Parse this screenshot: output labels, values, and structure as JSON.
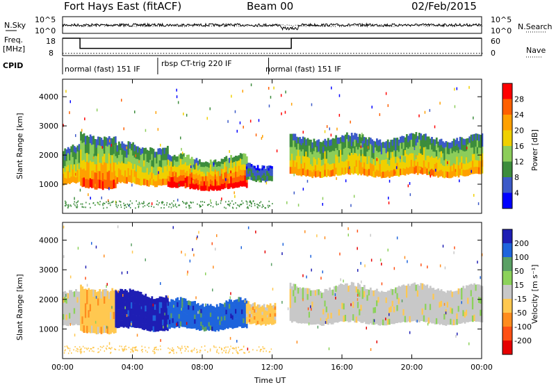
{
  "header": {
    "station": "Fort Hays East (fitACF)",
    "beam": "Beam 00",
    "date": "02/Feb/2015"
  },
  "top_panels": {
    "nsky_label": "N.Sky",
    "nsearch_label": "N.Search",
    "noise_ticks": [
      "10^5",
      "10^0"
    ],
    "freq_label": "Freq.",
    "freq_unit": "[MHz]",
    "freq_ticks": [
      "18",
      "8"
    ],
    "nave_label": "Nave",
    "nave_ticks": [
      "60",
      "0"
    ],
    "cpid_label": "CPID",
    "cpid_segments": [
      {
        "name": "normal (fast) 151 IF",
        "start_hr": 0.0,
        "end_hr": 5.45
      },
      {
        "name": "rbsp CT-trig 220 IF",
        "start_hr": 5.45,
        "end_hr": 11.8
      },
      {
        "name": "normal (fast) 151 IF",
        "start_hr": 11.8,
        "end_hr": 24.0
      }
    ],
    "freq_trace_mhz": [
      [
        0,
        18
      ],
      [
        1.0,
        18
      ],
      [
        1.0,
        11
      ],
      [
        13.1,
        11
      ],
      [
        13.1,
        18
      ],
      [
        24,
        18
      ]
    ],
    "nave_trace": [
      [
        0,
        8
      ],
      [
        24,
        8
      ]
    ]
  },
  "chart_data": [
    {
      "type": "heatmap",
      "parameter": "Power",
      "ylabel": "Slant Range [km]",
      "colorbar_label": "Power [dB]",
      "colorbar_ticks": [
        "28",
        "24",
        "20",
        "16",
        "12",
        "8",
        "4"
      ],
      "colorbar_colors": [
        "#ff0000",
        "#ff6000",
        "#ffa000",
        "#f0d000",
        "#8ccd5a",
        "#3c8c3c",
        "#3c5ac8",
        "#0000ff"
      ],
      "ylim": [
        0,
        4600
      ],
      "yticks": [
        1000,
        2000,
        3000,
        4000
      ],
      "xlim": [
        0,
        24
      ],
      "echo_regions": [
        {
          "start_hr": 0.0,
          "end_hr": 1.0,
          "lower_km": 1000,
          "upper_km": 2200,
          "peak_db": 22
        },
        {
          "start_hr": 1.0,
          "end_hr": 3.0,
          "lower_km": 900,
          "upper_km": 2700,
          "peak_db": 26
        },
        {
          "start_hr": 3.0,
          "end_hr": 6.0,
          "lower_km": 1000,
          "upper_km": 2300,
          "peak_db": 22
        },
        {
          "start_hr": 6.0,
          "end_hr": 10.5,
          "lower_km": 850,
          "upper_km": 1900,
          "peak_db": 30
        },
        {
          "start_hr": 10.5,
          "end_hr": 12.0,
          "lower_km": 1150,
          "upper_km": 1700,
          "peak_db": 10
        },
        {
          "start_hr": 13.0,
          "end_hr": 24.0,
          "lower_km": 1300,
          "upper_km": 2600,
          "peak_db": 22
        }
      ]
    },
    {
      "type": "heatmap",
      "parameter": "Velocity",
      "ylabel": "Slant Range [km]",
      "colorbar_label": "Velocity [m s⁻¹]",
      "colorbar_ticks": [
        "200",
        "100",
        "50",
        "15",
        "-15",
        "-50",
        "-100",
        "-200"
      ],
      "colorbar_colors": [
        "#1e1eb4",
        "#1e64dc",
        "#5aa064",
        "#8cd25a",
        "#c8c8c8",
        "#ffc850",
        "#ff8c1e",
        "#ff5014",
        "#e60000"
      ],
      "ylim": [
        0,
        4600
      ],
      "yticks": [
        1000,
        2000,
        3000,
        4000
      ],
      "xlim": [
        0,
        24
      ],
      "echo_regions": [
        {
          "start_hr": 0.0,
          "end_hr": 1.0,
          "lower_km": 1100,
          "upper_km": 2200,
          "velocity_class": "-15 to 15"
        },
        {
          "start_hr": 1.0,
          "end_hr": 3.0,
          "lower_km": 900,
          "upper_km": 2400,
          "velocity_class": "-50"
        },
        {
          "start_hr": 3.0,
          "end_hr": 6.0,
          "lower_km": 1000,
          "upper_km": 2200,
          "velocity_class": "200"
        },
        {
          "start_hr": 6.0,
          "end_hr": 10.5,
          "lower_km": 1000,
          "upper_km": 1900,
          "velocity_class": "100"
        },
        {
          "start_hr": 10.5,
          "end_hr": 12.2,
          "lower_km": 1200,
          "upper_km": 1900,
          "velocity_class": "-50"
        },
        {
          "start_hr": 13.0,
          "end_hr": 24.0,
          "lower_km": 1200,
          "upper_km": 2400,
          "velocity_class": "-15 to 15"
        }
      ]
    }
  ],
  "xaxis": {
    "label": "Time UT",
    "ticks": [
      "00:00",
      "04:00",
      "08:00",
      "12:00",
      "16:00",
      "20:00",
      "00:00"
    ],
    "tick_hours": [
      0,
      4,
      8,
      12,
      16,
      20,
      24
    ]
  }
}
